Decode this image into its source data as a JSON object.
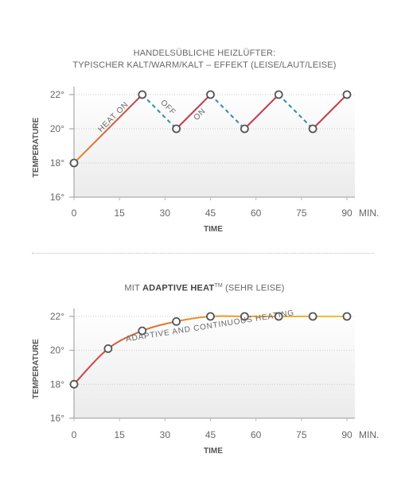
{
  "chart1_title_line1": "HANDELSÜBLICHE HEIZLÜFTER:",
  "chart1_title_line2": "TYPISCHER KALT/WARM/KALT – EFFEKT (LEISE/LAUT/LEISE)",
  "chart2_title_prefix": "MIT ",
  "chart2_title_bold": "ADAPTIVE HEAT",
  "chart2_title_tm": "TM",
  "chart2_title_suffix": " (SEHR LEISE)",
  "chart_data": [
    {
      "type": "line",
      "title": "HANDELSÜBLICHE HEIZLÜFTER: TYPISCHER KALT/WARM/KALT – EFFEKT (LEISE/LAUT/LEISE)",
      "xlabel": "TIME",
      "ylabel": "TEMPERATURE",
      "x_unit": "MIN.",
      "xlim": [
        0,
        90
      ],
      "ylim": [
        16,
        22
      ],
      "x_ticks": [
        0,
        15,
        30,
        45,
        60,
        75,
        90
      ],
      "x_tick_labels": [
        "0",
        "15",
        "30",
        "45",
        "60",
        "75",
        "90"
      ],
      "y_ticks": [
        16,
        18,
        20,
        22
      ],
      "y_tick_labels": [
        "16°",
        "18°",
        "20°",
        "22°"
      ],
      "grid": true,
      "points": [
        {
          "x": 0,
          "y": 18
        },
        {
          "x": 22.5,
          "y": 22
        },
        {
          "x": 33.75,
          "y": 20
        },
        {
          "x": 45,
          "y": 22
        },
        {
          "x": 56.25,
          "y": 20
        },
        {
          "x": 67.5,
          "y": 22
        },
        {
          "x": 78.75,
          "y": 20
        },
        {
          "x": 90,
          "y": 22
        }
      ],
      "segment_styles": [
        "heat",
        "off",
        "on",
        "off",
        "on",
        "off",
        "on"
      ],
      "annotations": [
        {
          "text": "HEAT ON",
          "x": 13.5,
          "y": 20.6
        },
        {
          "text": "OFF",
          "x": 30.5,
          "y": 21.15
        },
        {
          "text": "ON",
          "x": 42,
          "y": 20.75
        }
      ],
      "colors": {
        "heat_start": "#e8902e",
        "heat_end": "#c73a4b",
        "on": "#c73a4b",
        "off": "#2f8fb0"
      }
    },
    {
      "type": "line",
      "title": "MIT ADAPTIVE HEAT™ (SEHR LEISE)",
      "xlabel": "TIME",
      "ylabel": "TEMPERATURE",
      "x_unit": "MIN.",
      "xlim": [
        0,
        90
      ],
      "ylim": [
        16,
        22
      ],
      "x_ticks": [
        0,
        15,
        30,
        45,
        60,
        75,
        90
      ],
      "x_tick_labels": [
        "0",
        "15",
        "30",
        "45",
        "60",
        "75",
        "90"
      ],
      "y_ticks": [
        16,
        18,
        20,
        22
      ],
      "y_tick_labels": [
        "16°",
        "18°",
        "20°",
        "22°"
      ],
      "grid": true,
      "points": [
        {
          "x": 0,
          "y": 18
        },
        {
          "x": 11.25,
          "y": 20.1
        },
        {
          "x": 22.5,
          "y": 21.15
        },
        {
          "x": 33.75,
          "y": 21.7
        },
        {
          "x": 45,
          "y": 22
        },
        {
          "x": 56.25,
          "y": 22
        },
        {
          "x": 67.5,
          "y": 22
        },
        {
          "x": 78.75,
          "y": 22
        },
        {
          "x": 90,
          "y": 22
        }
      ],
      "annotations": [
        {
          "text": "ADAPTIVE AND CONTINUOUS HEATING",
          "x": 45,
          "y": 21.3
        }
      ],
      "colors": {
        "curve_start": "#c73a4b",
        "curve_end": "#f2c233"
      }
    }
  ]
}
